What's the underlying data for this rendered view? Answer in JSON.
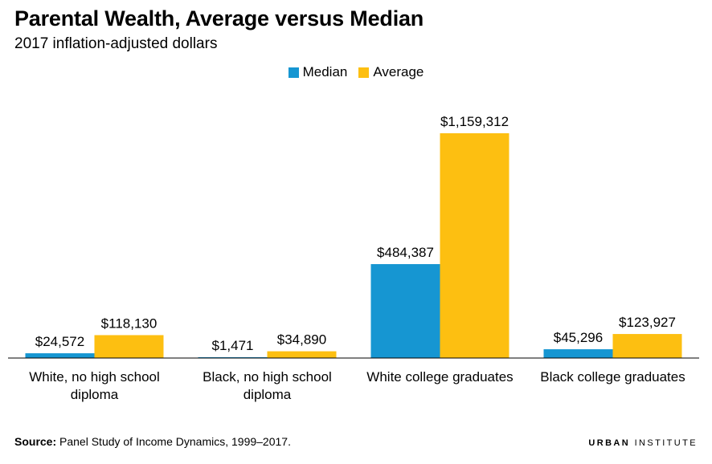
{
  "header": {
    "title": "Parental Wealth, Average versus Median",
    "subtitle": "2017 inflation-adjusted dollars"
  },
  "colors": {
    "median": "#1696d2",
    "average": "#fdbf11"
  },
  "chart_data": {
    "type": "bar",
    "title": "Parental Wealth, Average versus Median",
    "subtitle": "2017 inflation-adjusted dollars",
    "categories": [
      [
        "White, no high school",
        "diploma"
      ],
      [
        "Black, no high school",
        "diploma"
      ],
      [
        "White college graduates"
      ],
      [
        "Black college graduates"
      ]
    ],
    "series": [
      {
        "name": "Median",
        "values": [
          24572,
          1471,
          484387,
          45296
        ],
        "labels": [
          "$24,572",
          "$1,471",
          "$484,387",
          "$45,296"
        ]
      },
      {
        "name": "Average",
        "values": [
          118130,
          34890,
          1159312,
          123927
        ],
        "labels": [
          "$118,130",
          "$34,890",
          "$1,159,312",
          "$123,927"
        ]
      }
    ],
    "ylim": [
      0,
      1200000
    ],
    "grid": false,
    "legend_position": "top-center"
  },
  "footer": {
    "source_label": "Source:",
    "source_text": " Panel Study of Income Dynamics, 1999–2017.",
    "logo_bold": "URBAN",
    "logo_rest": " INSTITUTE"
  }
}
